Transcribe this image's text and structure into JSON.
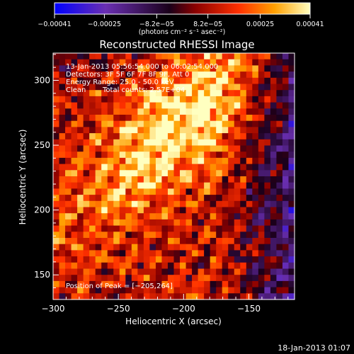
{
  "chart_data": {
    "type": "heatmap",
    "title": "Reconstructed RHESSI Image",
    "xlabel": "Heliocentric X (arcsec)",
    "ylabel": "Heliocentric Y (arcsec)",
    "xlim": [
      -300,
      -115
    ],
    "ylim": [
      131,
      321
    ],
    "x_ticks": [
      -300,
      -250,
      -200,
      -150
    ],
    "y_ticks": [
      150,
      200,
      250,
      300
    ],
    "x_tick_labels": [
      "−300",
      "−250",
      "−200",
      "−150"
    ],
    "y_tick_labels": [
      "150",
      "200",
      "250",
      "300"
    ],
    "colorbar": {
      "range": [
        -0.00041,
        0.00041
      ],
      "ticks": [
        -0.00041,
        -0.00025,
        -8.2e-05,
        8.2e-05,
        0.00025,
        0.00041
      ],
      "tick_labels": [
        "−0.00041",
        "−0.00025",
        "−8.2e−05",
        "8.2e−05",
        "0.00025",
        "0.00041"
      ],
      "units": "(photons cm⁻² s⁻¹ asec⁻²)",
      "colors": [
        "#0000ff",
        "#6a2fb2",
        "#1a001a",
        "#8a0000",
        "#ff3000",
        "#ffa000",
        "#ffffc0"
      ]
    },
    "peak": [
      -205,
      264
    ],
    "grid": false
  },
  "info": {
    "time_range": "13-Jan-2013 05:56:54.000 to 06:02:54.000",
    "detectors": "Detectors: 3F 5F 6F 7F 8F 9F, Att 0",
    "energy": "Energy Range: 25.0 - 50.0 keV",
    "method": "Clean",
    "counts": "Total counts: 2.57E+04",
    "peak_label": "Position of Peak = [−205,264]"
  },
  "footer": {
    "timestamp": "18-Jan-2013 01:07"
  }
}
